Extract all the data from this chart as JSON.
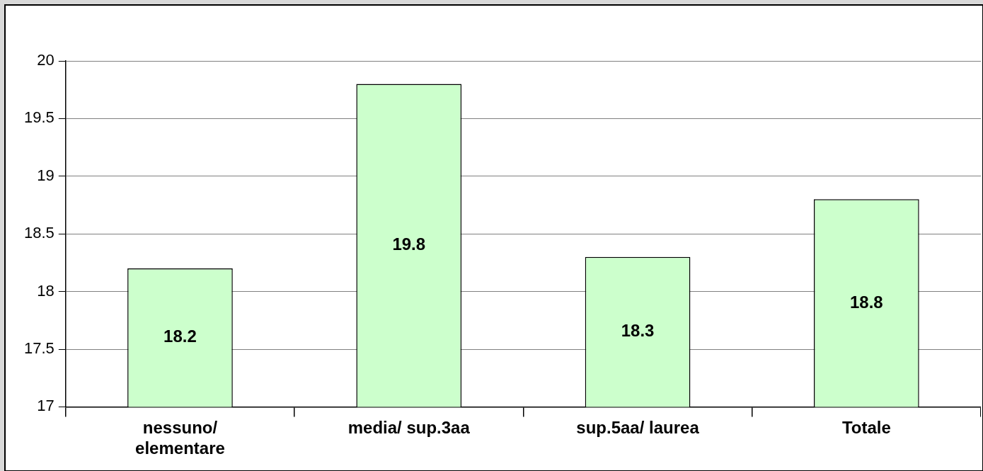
{
  "chart_data": {
    "type": "bar",
    "categories": [
      "nessuno/\nelementare",
      "media/ sup.3aa",
      "sup.5aa/ laurea",
      "Totale"
    ],
    "values": [
      18.2,
      19.8,
      18.3,
      18.8
    ],
    "color": "#ccffcc",
    "ylim": [
      17,
      20
    ],
    "yticks": [
      17,
      17.5,
      18,
      18.5,
      19,
      19.5,
      20
    ],
    "grid": "y",
    "data_labels": true
  }
}
